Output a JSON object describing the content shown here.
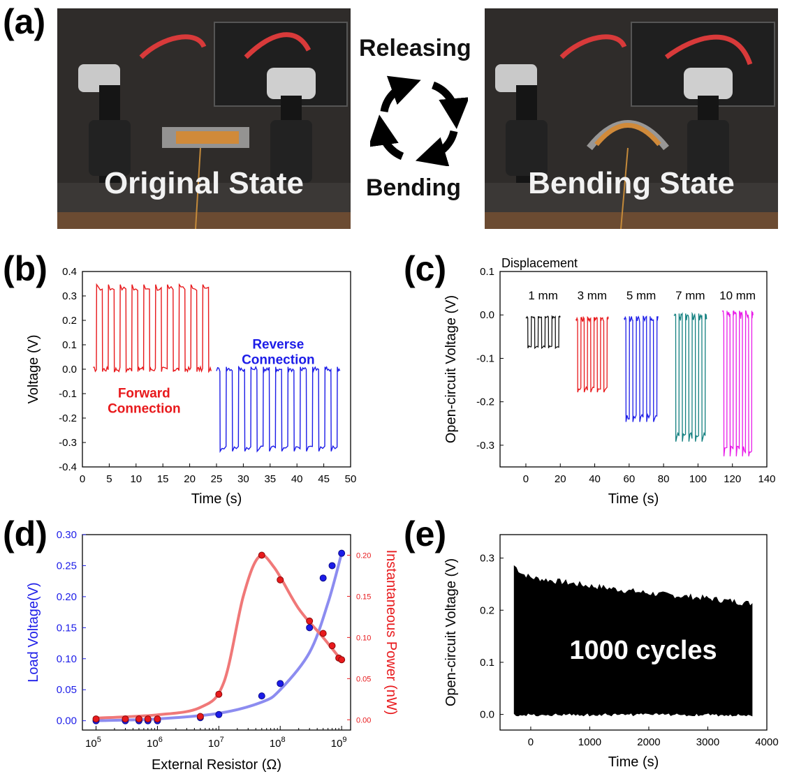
{
  "panel_a": {
    "letter": "(a)",
    "left_state": "Original State",
    "right_state": "Bending State",
    "top_word": "Releasing",
    "bottom_word": "Bending"
  },
  "chart_data": [
    {
      "id": "b",
      "letter": "(b)",
      "type": "line",
      "xlabel": "Time (s)",
      "ylabel": "Voltage (V)",
      "xlim": [
        0,
        50
      ],
      "ylim": [
        -0.4,
        0.4
      ],
      "xticks": [
        0,
        5,
        10,
        15,
        20,
        25,
        30,
        35,
        40,
        45,
        50
      ],
      "yticks": [
        -0.4,
        -0.3,
        -0.2,
        -0.1,
        0.0,
        0.1,
        0.2,
        0.3,
        0.4
      ],
      "series": [
        {
          "name": "Forward Connection",
          "color": "#e8191c",
          "t_start": 2,
          "t_end": 24,
          "cycles": 10,
          "base": 0.0,
          "peak": 0.33,
          "duty": 0.5
        },
        {
          "name": "Reverse Connection",
          "color": "#1c1ce8",
          "t_start": 25,
          "t_end": 48,
          "cycles": 10,
          "base": 0.0,
          "peak": -0.32,
          "duty": 0.5
        }
      ],
      "annotations": [
        {
          "lines": [
            "Forward",
            "Connection"
          ],
          "color": "#e8191c",
          "x": 11.5,
          "y": -0.115
        },
        {
          "lines": [
            "Reverse",
            "Connection"
          ],
          "color": "#1c1ce8",
          "x": 36.5,
          "y": 0.085
        }
      ]
    },
    {
      "id": "c",
      "letter": "(c)",
      "type": "line",
      "xlabel": "Time (s)",
      "ylabel": "Open-circuit Voltage (V)",
      "title": "Displacement",
      "xlim": [
        -15,
        140
      ],
      "ylim": [
        -0.35,
        0.1
      ],
      "xticks": [
        0,
        20,
        40,
        60,
        80,
        100,
        120,
        140
      ],
      "yticks": [
        -0.3,
        -0.2,
        -0.1,
        0.0,
        0.1
      ],
      "series": [
        {
          "name": "1 mm",
          "color": "#111111",
          "t_start": 0,
          "t_end": 20,
          "cycles": 5,
          "base": -0.005,
          "peak": -0.073,
          "duty": 0.5
        },
        {
          "name": "3 mm",
          "color": "#e8191c",
          "t_start": 29,
          "t_end": 48,
          "cycles": 5,
          "base": -0.01,
          "peak": -0.17,
          "duty": 0.5
        },
        {
          "name": "5 mm",
          "color": "#1c1ce8",
          "t_start": 57,
          "t_end": 77,
          "cycles": 5,
          "base": -0.01,
          "peak": -0.235,
          "duty": 0.5
        },
        {
          "name": "7 mm",
          "color": "#138080",
          "t_start": 86,
          "t_end": 105,
          "cycles": 5,
          "base": -0.005,
          "peak": -0.278,
          "duty": 0.5
        },
        {
          "name": "10 mm",
          "color": "#e81ce8",
          "t_start": 114,
          "t_end": 132,
          "cycles": 5,
          "base": 0.0,
          "peak": -0.31,
          "duty": 0.5
        }
      ]
    },
    {
      "id": "d",
      "letter": "(d)",
      "type": "scatter",
      "xlabel": "External Resistor (Ω)",
      "ylabel": "Load Voltage(V)",
      "y2label": "Instantaneous Power (nW)",
      "xscale": "log",
      "xlim": [
        60000,
        1400000000
      ],
      "ylim": [
        -0.015,
        0.3
      ],
      "y2lim": [
        -0.0125,
        0.225
      ],
      "xticks": [
        100000,
        1000000,
        10000000,
        100000000,
        1000000000
      ],
      "xticklabels": [
        "10^5",
        "10^6",
        "10^7",
        "10^8",
        "10^9"
      ],
      "yticks": [
        0.0,
        0.05,
        0.1,
        0.15,
        0.2,
        0.25,
        0.3
      ],
      "yticklabels": [
        "0.00",
        "0.05",
        "0.10",
        "0.15",
        "0.20",
        "0.25",
        "0.30"
      ],
      "y2ticks": [
        0.0,
        0.05,
        0.1,
        0.15,
        0.2
      ],
      "y2ticklabels": [
        "0.00",
        "0.05",
        "0.10",
        "0.15",
        "0.20"
      ],
      "voltage": {
        "color": "#1c1ce8",
        "x": [
          100000,
          300000,
          500000,
          700000,
          1000000,
          5000000,
          10000000,
          50000000,
          100000000,
          300000000,
          500000000,
          700000000,
          1000000000
        ],
        "y": [
          0.0,
          0.0,
          0.0,
          0.0,
          0.0,
          0.005,
          0.01,
          0.04,
          0.06,
          0.15,
          0.23,
          0.25,
          0.27
        ]
      },
      "power": {
        "color": "#e8191c",
        "x": [
          100000,
          300000,
          500000,
          700000,
          1000000,
          5000000,
          10000000,
          50000000,
          100000000,
          300000000,
          500000000,
          700000000,
          900000000,
          1000000000
        ],
        "y": [
          0.001,
          0.001,
          0.001,
          0.001,
          0.001,
          0.004,
          0.031,
          0.2,
          0.17,
          0.12,
          0.105,
          0.09,
          0.075,
          0.073
        ]
      }
    },
    {
      "id": "e",
      "letter": "(e)",
      "type": "area",
      "xlabel": "Time (s)",
      "ylabel": "Open-circuit Voltage (V)",
      "annotation": "1000 cycles",
      "xlim": [
        -520,
        4000
      ],
      "ylim": [
        -0.03,
        0.345
      ],
      "xticks": [
        0,
        1000,
        2000,
        3000,
        4000
      ],
      "yticks": [
        0.0,
        0.1,
        0.2,
        0.3
      ],
      "yticklabels": [
        "0.0",
        "0.1",
        "0.2",
        "0.3"
      ],
      "envelope": {
        "t": [
          -280,
          -150,
          0,
          1000,
          2000,
          3000,
          3750
        ],
        "upper": [
          0.285,
          0.27,
          0.262,
          0.246,
          0.232,
          0.222,
          0.212
        ],
        "lower": [
          0.0,
          0.0,
          0.0,
          0.0,
          0.0,
          0.0,
          0.0
        ]
      }
    }
  ]
}
